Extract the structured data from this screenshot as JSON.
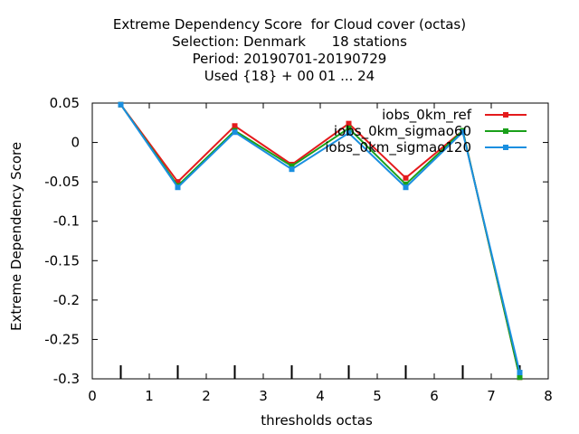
{
  "chart_data": {
    "type": "line",
    "title_lines": [
      "Extreme Dependency Score  for Cloud cover (octas)",
      "Selection: Denmark      18 stations",
      "Period: 20190701-20190729",
      "Used {18} + 00 01 ... 24"
    ],
    "xlabel": "thresholds octas",
    "ylabel": "Extreme Dependency Score",
    "xlim": [
      0,
      8
    ],
    "ylim": [
      -0.3,
      0.05
    ],
    "xticks": [
      "0",
      "1",
      "2",
      "3",
      "4",
      "5",
      "6",
      "7",
      "8"
    ],
    "yticks": [
      "0.05",
      "0",
      "-0.05",
      "-0.1",
      "-0.15",
      "-0.2",
      "-0.25",
      "-0.3"
    ],
    "ytick_values": [
      0.05,
      0,
      -0.05,
      -0.1,
      -0.15,
      -0.2,
      -0.25,
      -0.3
    ],
    "xtick_values": [
      0,
      1,
      2,
      3,
      4,
      5,
      6,
      7,
      8
    ],
    "minor_tick_x": [
      0.5,
      1.5,
      2.5,
      3.5,
      4.5,
      5.5,
      6.5,
      7.5
    ],
    "legend_position": "top-right",
    "grid": false,
    "x": [
      0.5,
      1.5,
      2.5,
      3.5,
      4.5,
      5.5,
      6.5,
      7.5
    ],
    "series": [
      {
        "name": "iobs_0km_ref",
        "color": "#e41a1c",
        "values": [
          0.048,
          -0.05,
          0.021,
          -0.028,
          0.024,
          -0.045,
          0.015,
          -0.298
        ]
      },
      {
        "name": "iobs_0km_sigmao60",
        "color": "#1aa01a",
        "values": [
          0.048,
          -0.055,
          0.015,
          -0.03,
          0.018,
          -0.053,
          0.015,
          -0.298
        ]
      },
      {
        "name": "iobs_0km_sigmao120",
        "color": "#1a8fe0",
        "values": [
          0.048,
          -0.057,
          0.013,
          -0.034,
          0.012,
          -0.057,
          0.013,
          -0.292
        ]
      }
    ]
  }
}
